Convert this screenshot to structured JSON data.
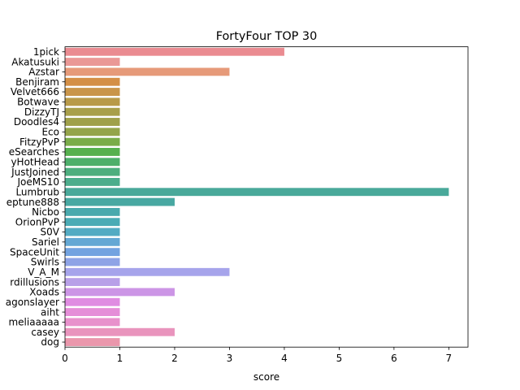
{
  "chart_data": {
    "type": "bar",
    "orientation": "horizontal",
    "title": "FortyFour TOP 30",
    "xlabel": "score",
    "ylabel": "",
    "xlim": [
      0,
      7.35
    ],
    "xticks": [
      0,
      1,
      2,
      3,
      4,
      5,
      6,
      7
    ],
    "grid": false,
    "categories": [
      "1pick",
      "Akatusuki",
      "Azstar",
      "Benjiram",
      "Velvet666",
      "Botwave",
      "DizzyTJ",
      "Doodles4",
      "Eco",
      "FitzyPvP",
      "eSearches",
      "yHotHead",
      "JustJoined",
      "JoeMS10",
      "Lumbrub",
      "eptune888",
      "Nicbo",
      "OrionPvP",
      "S0V",
      "Sariel",
      "SpaceUnit",
      "Swirls",
      "V_A_M",
      "rdillusions",
      "Xoads",
      "agonslayer",
      "aiht",
      "meliaaaaa",
      "casey",
      "dog"
    ],
    "values": [
      4,
      1,
      3,
      1,
      1,
      1,
      1,
      1,
      1,
      1,
      1,
      1,
      1,
      1,
      7,
      2,
      1,
      1,
      1,
      1,
      1,
      1,
      3,
      1,
      2,
      1,
      1,
      1,
      2,
      1
    ],
    "colors": [
      "#ea8b91",
      "#ea9896",
      "#e69a79",
      "#d48f46",
      "#c9954a",
      "#b89a49",
      "#a89f4a",
      "#9fa04a",
      "#94a44a",
      "#7aac49",
      "#56b04e",
      "#4daf6a",
      "#4dae7e",
      "#4cad8c",
      "#49a99a",
      "#48a8a2",
      "#49a9ad",
      "#4aabb5",
      "#53abc3",
      "#64a8d4",
      "#73a3e0",
      "#8ea3e6",
      "#a6a4eb",
      "#b8a0e8",
      "#cc95e6",
      "#e08ce2",
      "#e58ed8",
      "#e891cc",
      "#e994bd",
      "#ea97ac"
    ]
  }
}
